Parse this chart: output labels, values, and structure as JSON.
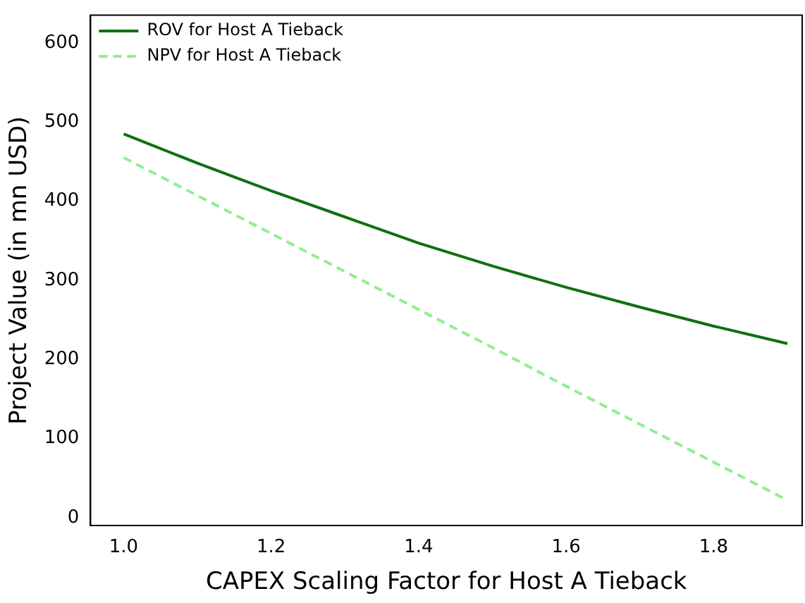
{
  "chart_data": {
    "type": "line",
    "xlabel": "CAPEX Scaling Factor for Host A Tieback",
    "ylabel": "Project Value (in mn USD)",
    "x": [
      1.0,
      1.1,
      1.2,
      1.3,
      1.4,
      1.5,
      1.6,
      1.7,
      1.8,
      1.9
    ],
    "series": [
      {
        "name": "ROV for Host A Tieback",
        "color": "#107010",
        "line_style": "solid",
        "values": [
          485,
          448,
          413,
          380,
          347,
          318,
          291,
          266,
          242,
          220
        ]
      },
      {
        "name": "NPV for Host A Tieback",
        "color": "#90ee90",
        "line_style": "dashed",
        "values": [
          455,
          407,
          359,
          311,
          263,
          215,
          166,
          118,
          70,
          22
        ]
      }
    ],
    "xlim": [
      0.955,
      1.92
    ],
    "xticks": [
      {
        "value": 1.0,
        "label": "1.0"
      },
      {
        "value": 1.2,
        "label": "1.2"
      },
      {
        "value": 1.4,
        "label": "1.4"
      },
      {
        "value": 1.6,
        "label": "1.6"
      },
      {
        "value": 1.8,
        "label": "1.8"
      }
    ],
    "ylim": [
      -10,
      635
    ],
    "yticks": [
      0,
      100,
      200,
      300,
      400,
      500,
      600
    ],
    "grid": false,
    "legend": "top left",
    "marker": "none"
  }
}
